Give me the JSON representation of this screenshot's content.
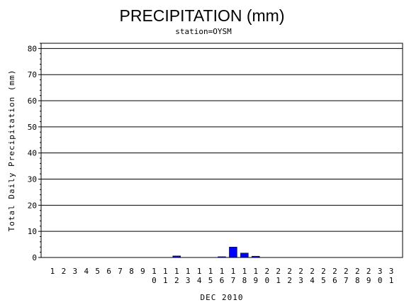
{
  "chart_data": {
    "type": "bar",
    "title": "PRECIPITATION (mm)",
    "subtitle": "station=OYSM",
    "ylabel": "Total Daily Precipitation (mm)",
    "xlabel": "DEC 2010",
    "ylim": [
      0,
      82
    ],
    "yticks": [
      0,
      10,
      20,
      30,
      40,
      50,
      60,
      70,
      80
    ],
    "grid": true,
    "bar_color": "#0000ff",
    "categories": [
      "1",
      "2",
      "3",
      "4",
      "5",
      "6",
      "7",
      "8",
      "9",
      "10",
      "11",
      "12",
      "13",
      "14",
      "15",
      "16",
      "17",
      "18",
      "19",
      "20",
      "21",
      "22",
      "23",
      "24",
      "25",
      "26",
      "27",
      "28",
      "29",
      "30",
      "31"
    ],
    "values": [
      0,
      0,
      0,
      0,
      0,
      0,
      0,
      0,
      0,
      0,
      0,
      0.6,
      0,
      0,
      0,
      0.3,
      4.0,
      1.7,
      0.5,
      0,
      0,
      0,
      0,
      0,
      0,
      0,
      0,
      0,
      0,
      0,
      0
    ]
  }
}
